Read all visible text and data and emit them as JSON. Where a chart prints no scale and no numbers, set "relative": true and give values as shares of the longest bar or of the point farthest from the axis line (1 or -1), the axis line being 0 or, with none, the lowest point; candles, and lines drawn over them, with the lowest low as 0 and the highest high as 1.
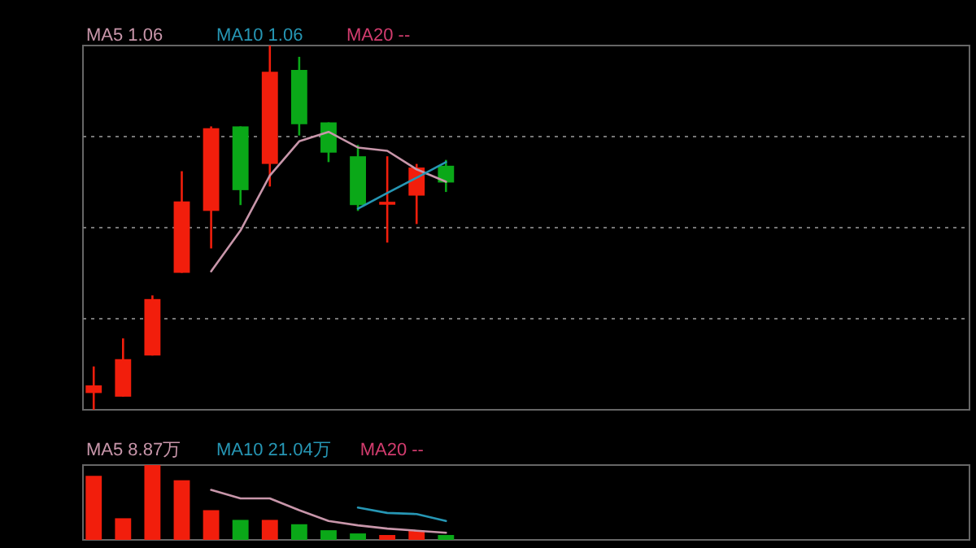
{
  "chart_data": [
    {
      "type": "candlestick",
      "relative": true,
      "grid": "y",
      "legend": "top left",
      "colors": [
        "#f21e0c",
        "#f21e0c",
        "#f21e0c",
        "#f21e0c",
        "#f21e0c",
        "#0aa818",
        "#f21e0c",
        "#0aa818",
        "#0aa818",
        "#0aa818",
        "#f21e0c",
        "#f21e0c",
        "#0aa818",
        null,
        null,
        null,
        null,
        null,
        null,
        null,
        null,
        null,
        null,
        null,
        null,
        null,
        null,
        null,
        null,
        null
      ],
      "categories": [
        null,
        null,
        null,
        null,
        null,
        null,
        null,
        null,
        null,
        null,
        null,
        null,
        null,
        null,
        null,
        null,
        null,
        null,
        null,
        null,
        null,
        null,
        null,
        null,
        null,
        null,
        null,
        null,
        null,
        null
      ],
      "ohlc": [
        [
          0.046,
          0.119,
          0,
          0.067
        ],
        [
          0.036,
          0.196,
          0.036,
          0.139
        ],
        [
          0.149,
          0.314,
          0.149,
          0.304
        ],
        [
          0.376,
          0.655,
          0.376,
          0.572
        ],
        [
          0.546,
          0.778,
          0.443,
          0.773
        ],
        [
          0.778,
          0.778,
          0.562,
          0.603
        ],
        [
          0.675,
          1,
          0.613,
          0.928
        ],
        [
          0.933,
          0.969,
          0.753,
          0.784
        ],
        [
          0.789,
          0.789,
          0.68,
          0.706
        ],
        [
          0.696,
          0.727,
          0.546,
          0.562
        ],
        [
          0.563,
          0.696,
          0.459,
          0.571
        ],
        [
          0.588,
          0.675,
          0.51,
          0.665
        ],
        [
          0.67,
          0.686,
          0.598,
          0.624
        ],
        null,
        null,
        null,
        null,
        null,
        null,
        null,
        null,
        null,
        null,
        null,
        null,
        null,
        null,
        null,
        null,
        null
      ],
      "series": [
        {
          "type": "line",
          "name": "MA5 1.06",
          "color": "#c896aa",
          "values": [
            null,
            null,
            null,
            null,
            0.38,
            0.492,
            0.643,
            0.737,
            0.763,
            0.72,
            0.711,
            0.66,
            0.626,
            null,
            null,
            null,
            null,
            null,
            null,
            null,
            null,
            null,
            null,
            null,
            null,
            null,
            null,
            null,
            null,
            null
          ]
        },
        {
          "type": "line",
          "name": "MA10 1.06",
          "color": "#2696b4",
          "values": [
            null,
            null,
            null,
            null,
            null,
            null,
            null,
            null,
            null,
            0.552,
            0.595,
            0.637,
            0.68,
            null,
            null,
            null,
            null,
            null,
            null,
            null,
            null,
            null,
            null,
            null,
            null,
            null,
            null,
            null,
            null,
            null
          ]
        },
        {
          "type": "line",
          "name": "MA20 --",
          "color": "#d23c6e",
          "values": [
            null,
            null,
            null,
            null,
            null,
            null,
            null,
            null,
            null,
            null,
            null,
            null,
            null,
            null,
            null,
            null,
            null,
            null,
            null,
            null,
            null,
            null,
            null,
            null,
            null,
            null,
            null,
            null,
            null,
            null
          ]
        }
      ]
    },
    {
      "type": "bar",
      "relative": true,
      "legend": "top left",
      "categories": [
        null,
        null,
        null,
        null,
        null,
        null,
        null,
        null,
        null,
        null,
        null,
        null,
        null,
        null,
        null,
        null,
        null,
        null,
        null,
        null,
        null,
        null,
        null,
        null,
        null,
        null,
        null,
        null,
        null,
        null
      ],
      "series": [
        {
          "type": "bar",
          "values": [
            0.856,
            0.289,
            1,
            0.797,
            0.397,
            0.267,
            0.267,
            0.209,
            0.129,
            0.086,
            0.065,
            0.123,
            0.065,
            null,
            null,
            null,
            null,
            null,
            null,
            null,
            null,
            null,
            null,
            null,
            null,
            null,
            null,
            null,
            null,
            null
          ],
          "colors": [
            "#f21e0c",
            "#f21e0c",
            "#f21e0c",
            "#f21e0c",
            "#f21e0c",
            "#0aa818",
            "#f21e0c",
            "#0aa818",
            "#0aa818",
            "#0aa818",
            "#f21e0c",
            "#f21e0c",
            "#0aa818",
            null,
            null,
            null,
            null,
            null,
            null,
            null,
            null,
            null,
            null,
            null,
            null,
            null,
            null,
            null,
            null,
            null
          ]
        },
        {
          "type": "line",
          "name": "MA5 8.87万",
          "color": "#c896aa",
          "values": [
            null,
            null,
            null,
            null,
            0.668,
            0.554,
            0.554,
            0.397,
            0.252,
            0.194,
            0.151,
            0.123,
            0.095,
            null,
            null,
            null,
            null,
            null,
            null,
            null,
            null,
            null,
            null,
            null,
            null,
            null,
            null,
            null,
            null,
            null
          ]
        },
        {
          "type": "line",
          "name": "MA10 21.04万",
          "color": "#2696b4",
          "values": [
            null,
            null,
            null,
            null,
            null,
            null,
            null,
            null,
            null,
            0.431,
            0.36,
            0.345,
            0.252,
            null,
            null,
            null,
            null,
            null,
            null,
            null,
            null,
            null,
            null,
            null,
            null,
            null,
            null,
            null,
            null,
            null
          ]
        },
        {
          "type": "line",
          "name": "MA20 --",
          "color": "#d23c6e",
          "values": [
            null,
            null,
            null,
            null,
            null,
            null,
            null,
            null,
            null,
            null,
            null,
            null,
            null,
            null,
            null,
            null,
            null,
            null,
            null,
            null,
            null,
            null,
            null,
            null,
            null,
            null,
            null,
            null,
            null,
            null
          ]
        }
      ]
    }
  ]
}
